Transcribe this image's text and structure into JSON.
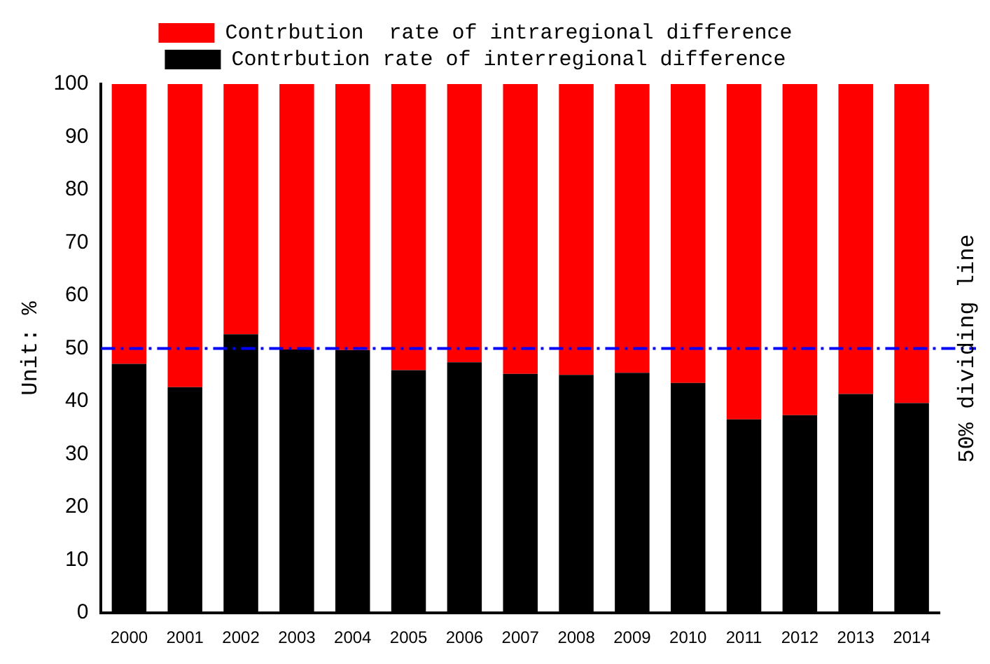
{
  "chart_data": {
    "type": "bar",
    "stacked": true,
    "ylabel": "Unit: %",
    "categories": [
      "2000",
      "2001",
      "2002",
      "2003",
      "2004",
      "2005",
      "2006",
      "2007",
      "2008",
      "2009",
      "2010",
      "2011",
      "2012",
      "2013",
      "2014"
    ],
    "series": [
      {
        "name": "Contrbution rate of interregional difference",
        "color": "#000000",
        "values": [
          47.1,
          42.7,
          52.7,
          49.8,
          49.7,
          45.9,
          47.4,
          45.2,
          45.0,
          45.4,
          43.5,
          36.6,
          37.4,
          41.4,
          39.7
        ]
      },
      {
        "name": "Contrbution  rate of intraregional difference",
        "color": "#ff0000",
        "values": [
          52.9,
          57.3,
          47.3,
          50.2,
          50.3,
          54.1,
          52.6,
          54.8,
          55.0,
          54.6,
          56.5,
          63.4,
          62.6,
          58.6,
          60.3
        ]
      }
    ],
    "ylim": [
      0,
      100
    ],
    "yticks": [
      0,
      10,
      20,
      30,
      40,
      50,
      60,
      70,
      80,
      90,
      100
    ],
    "grid": false,
    "legend": "top",
    "ref_lines": [
      {
        "axis": "y",
        "value": 50,
        "label": "50% dividing line",
        "color": "#0000ff",
        "line_style": "dashdot"
      }
    ]
  }
}
